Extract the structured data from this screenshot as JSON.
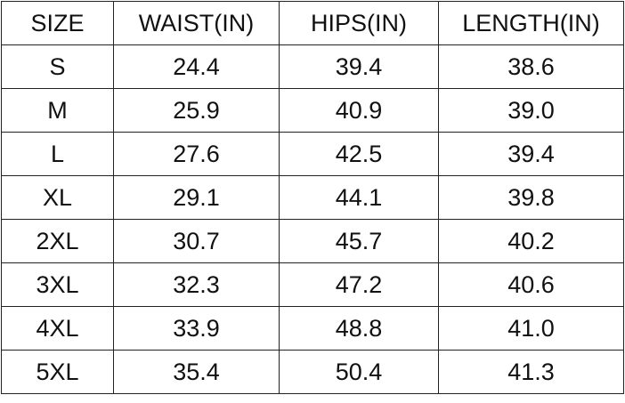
{
  "table": {
    "header": [
      "SIZE",
      "WAIST(IN)",
      "HIPS(IN)",
      "LENGTH(IN)"
    ],
    "rows": [
      [
        "S",
        "24.4",
        "39.4",
        "38.6"
      ],
      [
        "M",
        "25.9",
        "40.9",
        "39.0"
      ],
      [
        "L",
        "27.6",
        "42.5",
        "39.4"
      ],
      [
        "XL",
        "29.1",
        "44.1",
        "39.8"
      ],
      [
        "2XL",
        "30.7",
        "45.7",
        "40.2"
      ],
      [
        "3XL",
        "32.3",
        "47.2",
        "40.6"
      ],
      [
        "4XL",
        "33.9",
        "48.8",
        "41.0"
      ],
      [
        "5XL",
        "35.4",
        "50.4",
        "41.3"
      ]
    ]
  }
}
